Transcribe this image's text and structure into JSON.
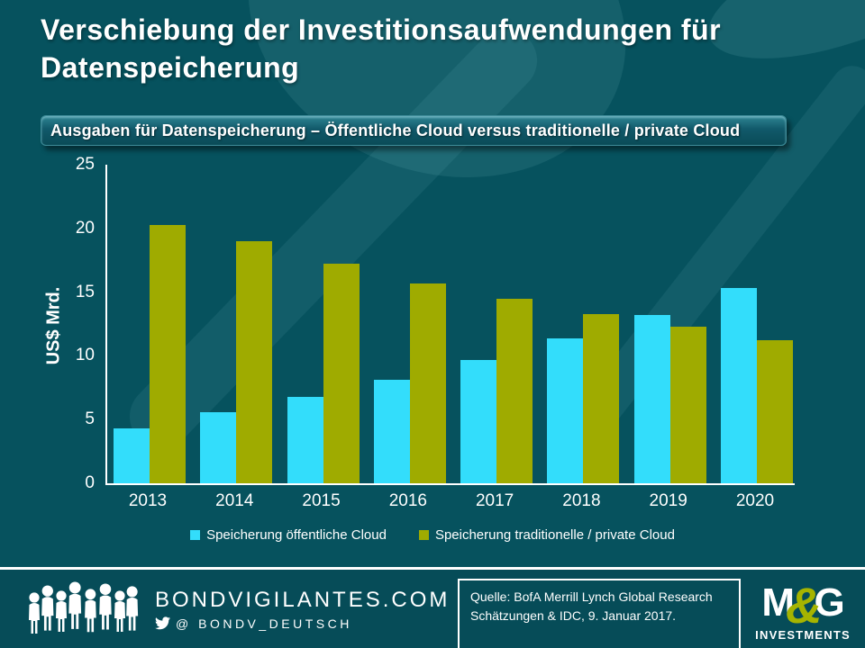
{
  "title": "Verschiebung der Investitionsaufwendungen für Datenspeicherung",
  "banner": "Ausgaben für Datenspeicherung – Öffentliche Cloud versus traditionelle / private Cloud",
  "chart_data": {
    "type": "bar",
    "categories": [
      "2013",
      "2014",
      "2015",
      "2016",
      "2017",
      "2018",
      "2019",
      "2020"
    ],
    "series": [
      {
        "name": "Speicherung öffentliche Cloud",
        "color": "#33ddfb",
        "values": [
          4.3,
          5.6,
          6.8,
          8.1,
          9.7,
          11.4,
          13.2,
          15.3
        ]
      },
      {
        "name": "Speicherung traditionelle / private Cloud",
        "color": "#9fab00",
        "values": [
          20.3,
          19.0,
          17.2,
          15.7,
          14.5,
          13.3,
          12.3,
          11.2
        ]
      }
    ],
    "title": "Ausgaben für Datenspeicherung – Öffentliche Cloud versus traditionelle / private Cloud",
    "xlabel": "",
    "ylabel": "US$ Mrd.",
    "ylim": [
      0,
      25
    ],
    "yticks": [
      0,
      5,
      10,
      15,
      20,
      25
    ],
    "grid": false,
    "legend_position": "bottom"
  },
  "footer": {
    "site": "BONDVIGILANTES.COM",
    "twitter": "@ BONDV_DEUTSCH",
    "source_line1": "Quelle: BofA Merrill Lynch Global Research",
    "source_line2": "Schätzungen & IDC, 9. Januar 2017.",
    "logo": {
      "m": "M",
      "amp": "&",
      "g": "G",
      "sub": "INVESTMENTS"
    }
  },
  "colors": {
    "background": "#06525e",
    "public_cloud": "#33ddfb",
    "private_cloud": "#9fab00",
    "footer_background": "#064c58",
    "accent_olive": "#a6b400",
    "text": "#ffffff"
  }
}
